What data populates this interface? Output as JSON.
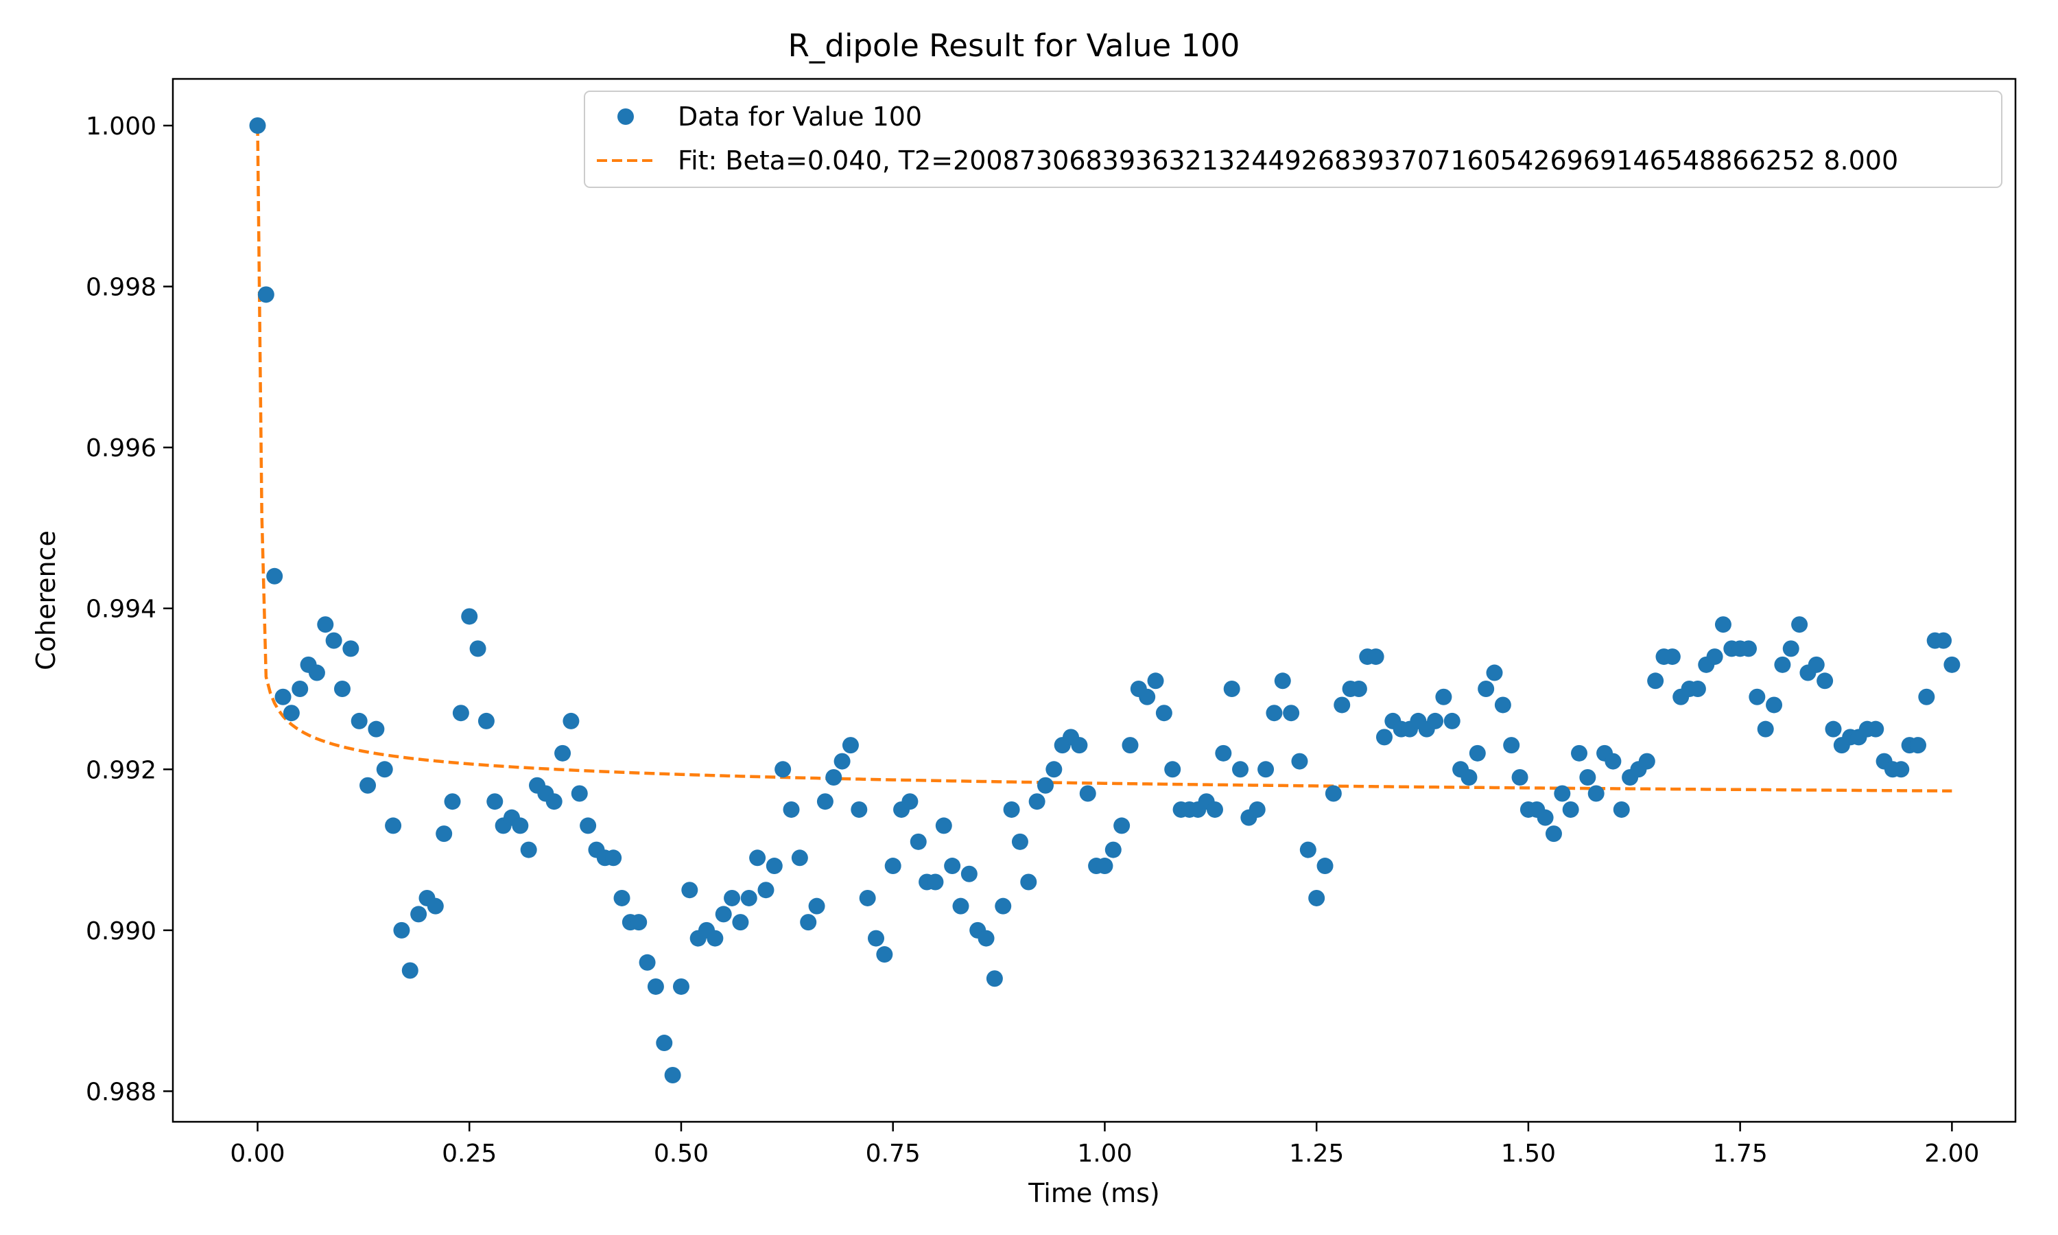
{
  "chart_data": {
    "type": "scatter",
    "title": "R_dipole Result for Value 100",
    "xlabel": "Time (ms)",
    "ylabel": "Coherence",
    "xlim": [
      -0.1,
      2.075
    ],
    "ylim": [
      0.98762,
      1.00058
    ],
    "x_ticks": [
      0.0,
      0.25,
      0.5,
      0.75,
      1.0,
      1.25,
      1.5,
      1.75,
      2.0
    ],
    "x_tick_labels": [
      "0.00",
      "0.25",
      "0.50",
      "0.75",
      "1.00",
      "1.25",
      "1.50",
      "1.75",
      "2.00"
    ],
    "y_ticks": [
      0.988,
      0.99,
      0.992,
      0.994,
      0.996,
      0.998,
      1.0
    ],
    "y_tick_labels": [
      "0.988",
      "0.990",
      "0.992",
      "0.994",
      "0.996",
      "0.998",
      "1.000"
    ],
    "grid": false,
    "legend_position": "top-right",
    "series": [
      {
        "name": "Data for Value 100",
        "kind": "scatter",
        "color": "#1f77b4",
        "x": [
          0.0,
          0.01,
          0.02,
          0.03,
          0.04,
          0.05,
          0.06,
          0.07,
          0.08,
          0.09,
          0.1,
          0.11,
          0.12,
          0.13,
          0.14,
          0.15,
          0.16,
          0.17,
          0.18,
          0.19,
          0.2,
          0.21,
          0.22,
          0.23,
          0.24,
          0.25,
          0.26,
          0.27,
          0.28,
          0.29,
          0.3,
          0.31,
          0.32,
          0.33,
          0.34,
          0.35,
          0.36,
          0.37,
          0.38,
          0.39,
          0.4,
          0.41,
          0.42,
          0.43,
          0.44,
          0.45,
          0.46,
          0.47,
          0.48,
          0.49,
          0.5,
          0.51,
          0.52,
          0.53,
          0.54,
          0.55,
          0.56,
          0.57,
          0.58,
          0.59,
          0.6,
          0.61,
          0.62,
          0.63,
          0.64,
          0.65,
          0.66,
          0.67,
          0.68,
          0.69,
          0.7,
          0.71,
          0.72,
          0.73,
          0.74,
          0.75,
          0.76,
          0.77,
          0.78,
          0.79,
          0.8,
          0.81,
          0.82,
          0.83,
          0.84,
          0.85,
          0.86,
          0.87,
          0.88,
          0.89,
          0.9,
          0.91,
          0.92,
          0.93,
          0.94,
          0.95,
          0.96,
          0.97,
          0.98,
          0.99,
          1.0,
          1.01,
          1.02,
          1.03,
          1.04,
          1.05,
          1.06,
          1.07,
          1.08,
          1.09,
          1.1,
          1.11,
          1.12,
          1.13,
          1.14,
          1.15,
          1.16,
          1.17,
          1.18,
          1.19,
          1.2,
          1.21,
          1.22,
          1.23,
          1.24,
          1.25,
          1.26,
          1.27,
          1.28,
          1.29,
          1.3,
          1.31,
          1.32,
          1.33,
          1.34,
          1.35,
          1.36,
          1.37,
          1.38,
          1.39,
          1.4,
          1.41,
          1.42,
          1.43,
          1.44,
          1.45,
          1.46,
          1.47,
          1.48,
          1.49,
          1.5,
          1.51,
          1.52,
          1.53,
          1.54,
          1.55,
          1.56,
          1.57,
          1.58,
          1.59,
          1.6,
          1.61,
          1.62,
          1.63,
          1.64,
          1.65,
          1.66,
          1.67,
          1.68,
          1.69,
          1.7,
          1.71,
          1.72,
          1.73,
          1.74,
          1.75,
          1.76,
          1.77,
          1.78,
          1.79,
          1.8,
          1.81,
          1.82,
          1.83,
          1.84,
          1.85,
          1.86,
          1.87,
          1.88,
          1.89,
          1.9,
          1.91,
          1.92,
          1.93,
          1.94,
          1.95,
          1.96,
          1.97,
          1.98,
          1.99,
          2.0
        ],
        "y": [
          1.0,
          0.9979,
          0.9944,
          0.9929,
          0.9927,
          0.993,
          0.9933,
          0.9932,
          0.9938,
          0.9936,
          0.993,
          0.9935,
          0.9926,
          0.9918,
          0.9925,
          0.992,
          0.9913,
          0.99,
          0.9895,
          0.9902,
          0.9904,
          0.9903,
          0.9912,
          0.9916,
          0.9927,
          0.9939,
          0.9935,
          0.9926,
          0.9916,
          0.9913,
          0.9914,
          0.9913,
          0.991,
          0.9918,
          0.9917,
          0.9916,
          0.9922,
          0.9926,
          0.9917,
          0.9913,
          0.991,
          0.9909,
          0.9909,
          0.9904,
          0.9901,
          0.9901,
          0.9896,
          0.9893,
          0.9886,
          0.9882,
          0.9893,
          0.9905,
          0.9899,
          0.99,
          0.9899,
          0.9902,
          0.9904,
          0.9901,
          0.9904,
          0.9909,
          0.9905,
          0.9908,
          0.992,
          0.9915,
          0.9909,
          0.9901,
          0.9903,
          0.9916,
          0.9919,
          0.9921,
          0.9923,
          0.9915,
          0.9904,
          0.9899,
          0.9897,
          0.9908,
          0.9915,
          0.9916,
          0.9911,
          0.9906,
          0.9906,
          0.9913,
          0.9908,
          0.9903,
          0.9907,
          0.99,
          0.9899,
          0.9894,
          0.9903,
          0.9915,
          0.9911,
          0.9906,
          0.9916,
          0.9918,
          0.992,
          0.9923,
          0.9924,
          0.9923,
          0.9917,
          0.9908,
          0.9908,
          0.991,
          0.9913,
          0.9923,
          0.993,
          0.9929,
          0.9931,
          0.9927,
          0.992,
          0.9915,
          0.9915,
          0.9915,
          0.9916,
          0.9915,
          0.9922,
          0.993,
          0.992,
          0.9914,
          0.9915,
          0.992,
          0.9927,
          0.9931,
          0.9927,
          0.9921,
          0.991,
          0.9904,
          0.9908,
          0.9917,
          0.9928,
          0.993,
          0.993,
          0.9934,
          0.9934,
          0.9924,
          0.9926,
          0.9925,
          0.9925,
          0.9926,
          0.9925,
          0.9926,
          0.9929,
          0.9926,
          0.992,
          0.9919,
          0.9922,
          0.993,
          0.9932,
          0.9928,
          0.9923,
          0.9919,
          0.9915,
          0.9915,
          0.9914,
          0.9912,
          0.9917,
          0.9915,
          0.9922,
          0.9919,
          0.9917,
          0.9922,
          0.9921,
          0.9915,
          0.9919,
          0.992,
          0.9921,
          0.9931,
          0.9934,
          0.9934,
          0.9929,
          0.993,
          0.993,
          0.9933,
          0.9934,
          0.9938,
          0.9935,
          0.9935,
          0.9935,
          0.9929,
          0.9925,
          0.9928,
          0.9933,
          0.9935,
          0.9938,
          0.9932,
          0.9933,
          0.9931,
          0.9925,
          0.9923,
          0.9924,
          0.9924,
          0.9925,
          0.9925,
          0.9921,
          0.992,
          0.992,
          0.9923,
          0.9923,
          0.9929,
          0.9936,
          0.9936,
          0.9933
        ]
      },
      {
        "name": "Fit: Beta=0.040, T2=2008730683936321324492683937071605426969146548866252 8.000",
        "kind": "line",
        "color": "#ff7f0e",
        "dashed": true,
        "beta": 0.04,
        "x_range": [
          0.0,
          2.0
        ]
      }
    ]
  }
}
